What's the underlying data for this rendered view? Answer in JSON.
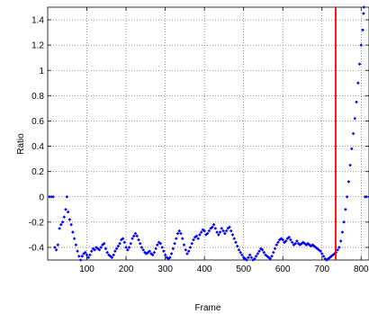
{
  "chart_data": {
    "type": "scatter",
    "title": "",
    "xlabel": "Frame",
    "ylabel": "Ratio",
    "xlim": [
      0,
      820
    ],
    "ylim": [
      -0.5,
      1.5
    ],
    "xticks": [
      100,
      200,
      300,
      400,
      500,
      600,
      700,
      800
    ],
    "xtick_labels": [
      "100",
      "200",
      "300",
      "400",
      "500",
      "600",
      "700",
      "800"
    ],
    "yticks": [
      -0.4,
      -0.2,
      0,
      0.2,
      0.4,
      0.6,
      0.8,
      1,
      1.2,
      1.4
    ],
    "ytick_labels": [
      "-0.4",
      "-0.2",
      "0",
      "0.2",
      "0.4",
      "0.6",
      "0.8",
      "1",
      "1.2",
      "1.4"
    ],
    "grid": true,
    "marker_color": "#0000ff",
    "vline": {
      "x": 735,
      "color": "#ff0000"
    },
    "points": [
      [
        5,
        0
      ],
      [
        10,
        0
      ],
      [
        14,
        0
      ],
      [
        18,
        -0.4
      ],
      [
        22,
        -0.42
      ],
      [
        26,
        -0.38
      ],
      [
        30,
        -0.25
      ],
      [
        34,
        -0.22
      ],
      [
        38,
        -0.2
      ],
      [
        42,
        -0.16
      ],
      [
        46,
        -0.1
      ],
      [
        49,
        0
      ],
      [
        52,
        -0.12
      ],
      [
        56,
        -0.18
      ],
      [
        60,
        -0.22
      ],
      [
        64,
        -0.28
      ],
      [
        68,
        -0.33
      ],
      [
        72,
        -0.38
      ],
      [
        76,
        -0.43
      ],
      [
        80,
        -0.47
      ],
      [
        84,
        -0.5
      ],
      [
        88,
        -0.47
      ],
      [
        92,
        -0.45
      ],
      [
        96,
        -0.44
      ],
      [
        100,
        -0.46
      ],
      [
        104,
        -0.48
      ],
      [
        108,
        -0.46
      ],
      [
        112,
        -0.43
      ],
      [
        116,
        -0.41
      ],
      [
        120,
        -0.42
      ],
      [
        124,
        -0.4
      ],
      [
        128,
        -0.41
      ],
      [
        132,
        -0.42
      ],
      [
        136,
        -0.4
      ],
      [
        140,
        -0.38
      ],
      [
        144,
        -0.37
      ],
      [
        148,
        -0.41
      ],
      [
        152,
        -0.44
      ],
      [
        156,
        -0.46
      ],
      [
        160,
        -0.47
      ],
      [
        164,
        -0.48
      ],
      [
        168,
        -0.46
      ],
      [
        172,
        -0.43
      ],
      [
        176,
        -0.41
      ],
      [
        180,
        -0.39
      ],
      [
        184,
        -0.37
      ],
      [
        188,
        -0.34
      ],
      [
        192,
        -0.33
      ],
      [
        196,
        -0.36
      ],
      [
        200,
        -0.4
      ],
      [
        204,
        -0.42
      ],
      [
        208,
        -0.4
      ],
      [
        212,
        -0.37
      ],
      [
        216,
        -0.33
      ],
      [
        220,
        -0.31
      ],
      [
        224,
        -0.29
      ],
      [
        228,
        -0.31
      ],
      [
        232,
        -0.34
      ],
      [
        236,
        -0.37
      ],
      [
        240,
        -0.4
      ],
      [
        244,
        -0.42
      ],
      [
        248,
        -0.44
      ],
      [
        252,
        -0.45
      ],
      [
        256,
        -0.44
      ],
      [
        260,
        -0.43
      ],
      [
        264,
        -0.45
      ],
      [
        268,
        -0.46
      ],
      [
        272,
        -0.44
      ],
      [
        276,
        -0.41
      ],
      [
        280,
        -0.38
      ],
      [
        284,
        -0.36
      ],
      [
        288,
        -0.37
      ],
      [
        292,
        -0.4
      ],
      [
        296,
        -0.43
      ],
      [
        300,
        -0.46
      ],
      [
        304,
        -0.48
      ],
      [
        308,
        -0.49
      ],
      [
        312,
        -0.48
      ],
      [
        316,
        -0.45
      ],
      [
        320,
        -0.41
      ],
      [
        324,
        -0.37
      ],
      [
        328,
        -0.33
      ],
      [
        332,
        -0.29
      ],
      [
        336,
        -0.27
      ],
      [
        340,
        -0.29
      ],
      [
        344,
        -0.33
      ],
      [
        348,
        -0.38
      ],
      [
        352,
        -0.42
      ],
      [
        356,
        -0.45
      ],
      [
        360,
        -0.43
      ],
      [
        364,
        -0.4
      ],
      [
        368,
        -0.37
      ],
      [
        372,
        -0.34
      ],
      [
        376,
        -0.32
      ],
      [
        380,
        -0.31
      ],
      [
        384,
        -0.33
      ],
      [
        388,
        -0.3
      ],
      [
        392,
        -0.28
      ],
      [
        396,
        -0.26
      ],
      [
        400,
        -0.27
      ],
      [
        404,
        -0.3
      ],
      [
        408,
        -0.29
      ],
      [
        412,
        -0.27
      ],
      [
        416,
        -0.25
      ],
      [
        420,
        -0.24
      ],
      [
        424,
        -0.22
      ],
      [
        428,
        -0.25
      ],
      [
        432,
        -0.28
      ],
      [
        436,
        -0.3
      ],
      [
        440,
        -0.28
      ],
      [
        444,
        -0.25
      ],
      [
        448,
        -0.27
      ],
      [
        452,
        -0.29
      ],
      [
        456,
        -0.27
      ],
      [
        460,
        -0.25
      ],
      [
        464,
        -0.24
      ],
      [
        468,
        -0.27
      ],
      [
        472,
        -0.3
      ],
      [
        476,
        -0.33
      ],
      [
        480,
        -0.36
      ],
      [
        484,
        -0.39
      ],
      [
        488,
        -0.42
      ],
      [
        492,
        -0.44
      ],
      [
        496,
        -0.46
      ],
      [
        500,
        -0.48
      ],
      [
        504,
        -0.49
      ],
      [
        508,
        -0.5
      ],
      [
        512,
        -0.48
      ],
      [
        516,
        -0.46
      ],
      [
        520,
        -0.48
      ],
      [
        524,
        -0.5
      ],
      [
        528,
        -0.49
      ],
      [
        532,
        -0.47
      ],
      [
        536,
        -0.45
      ],
      [
        540,
        -0.43
      ],
      [
        544,
        -0.41
      ],
      [
        548,
        -0.42
      ],
      [
        552,
        -0.44
      ],
      [
        556,
        -0.46
      ],
      [
        560,
        -0.47
      ],
      [
        564,
        -0.48
      ],
      [
        568,
        -0.49
      ],
      [
        572,
        -0.47
      ],
      [
        576,
        -0.44
      ],
      [
        580,
        -0.41
      ],
      [
        584,
        -0.38
      ],
      [
        588,
        -0.36
      ],
      [
        592,
        -0.34
      ],
      [
        596,
        -0.33
      ],
      [
        600,
        -0.34
      ],
      [
        604,
        -0.36
      ],
      [
        608,
        -0.35
      ],
      [
        612,
        -0.33
      ],
      [
        616,
        -0.32
      ],
      [
        620,
        -0.34
      ],
      [
        624,
        -0.36
      ],
      [
        628,
        -0.38
      ],
      [
        632,
        -0.37
      ],
      [
        636,
        -0.35
      ],
      [
        640,
        -0.37
      ],
      [
        644,
        -0.38
      ],
      [
        648,
        -0.37
      ],
      [
        652,
        -0.36
      ],
      [
        656,
        -0.37
      ],
      [
        660,
        -0.38
      ],
      [
        664,
        -0.37
      ],
      [
        668,
        -0.38
      ],
      [
        672,
        -0.39
      ],
      [
        676,
        -0.38
      ],
      [
        680,
        -0.39
      ],
      [
        684,
        -0.4
      ],
      [
        688,
        -0.41
      ],
      [
        692,
        -0.42
      ],
      [
        696,
        -0.43
      ],
      [
        700,
        -0.45
      ],
      [
        704,
        -0.47
      ],
      [
        708,
        -0.49
      ],
      [
        712,
        -0.5
      ],
      [
        716,
        -0.49
      ],
      [
        720,
        -0.48
      ],
      [
        724,
        -0.47
      ],
      [
        728,
        -0.46
      ],
      [
        732,
        -0.45
      ],
      [
        736,
        -0.44
      ],
      [
        740,
        -0.42
      ],
      [
        744,
        -0.4
      ],
      [
        748,
        -0.35
      ],
      [
        752,
        -0.28
      ],
      [
        756,
        -0.2
      ],
      [
        760,
        -0.1
      ],
      [
        764,
        0
      ],
      [
        768,
        0.12
      ],
      [
        772,
        0.25
      ],
      [
        776,
        0.38
      ],
      [
        780,
        0.5
      ],
      [
        784,
        0.62
      ],
      [
        788,
        0.75
      ],
      [
        792,
        0.9
      ],
      [
        796,
        1.05
      ],
      [
        800,
        1.2
      ],
      [
        804,
        1.32
      ],
      [
        806,
        1.45
      ],
      [
        807,
        1.5
      ],
      [
        810,
        0
      ],
      [
        814,
        0
      ]
    ]
  }
}
